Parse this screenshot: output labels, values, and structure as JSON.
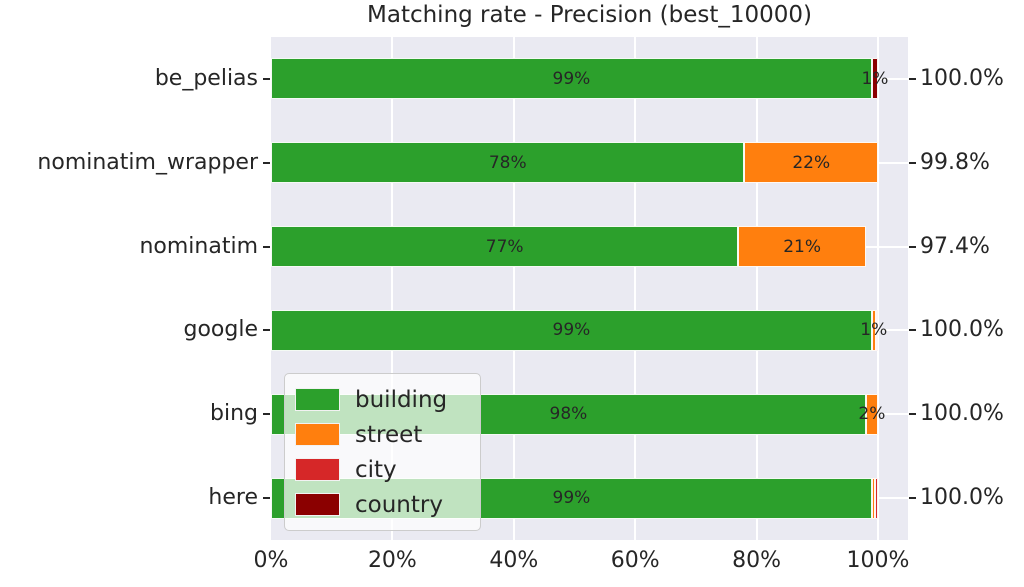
{
  "figure": {
    "background": "#ffffff",
    "plot_background": "#eaeaf2",
    "grid_color": "#ffffff",
    "text_color": "#262626"
  },
  "chart_data": {
    "type": "bar",
    "orientation": "horizontal",
    "stacked": true,
    "title": "Matching rate - Precision (best_10000)",
    "xlabel": "",
    "ylabel": "",
    "xlim": [
      0,
      105
    ],
    "grid": true,
    "x_ticks": [
      {
        "value": 0,
        "label": "0%"
      },
      {
        "value": 20,
        "label": "20%"
      },
      {
        "value": 40,
        "label": "40%"
      },
      {
        "value": 60,
        "label": "60%"
      },
      {
        "value": 80,
        "label": "80%"
      },
      {
        "value": 100,
        "label": "100%"
      }
    ],
    "legend": {
      "position": "lower left",
      "entries": [
        {
          "name": "building",
          "color": "#2ca02c"
        },
        {
          "name": "street",
          "color": "#ff7f0e"
        },
        {
          "name": "city",
          "color": "#d62728"
        },
        {
          "name": "country",
          "color": "#8b0000"
        }
      ]
    },
    "series_colors": {
      "building": "#2ca02c",
      "street": "#ff7f0e",
      "city": "#d62728",
      "country": "#8b0000"
    },
    "rows": [
      {
        "category": "be_pelias",
        "right_label": "100.0%",
        "segments": [
          {
            "series": "building",
            "value": 99,
            "label": "99%"
          },
          {
            "series": "country",
            "value": 1,
            "label": "1%"
          }
        ]
      },
      {
        "category": "nominatim_wrapper",
        "right_label": "99.8%",
        "segments": [
          {
            "series": "building",
            "value": 78,
            "label": "78%"
          },
          {
            "series": "street",
            "value": 22,
            "label": "22%"
          }
        ]
      },
      {
        "category": "nominatim",
        "right_label": "97.4%",
        "segments": [
          {
            "series": "building",
            "value": 77,
            "label": "77%"
          },
          {
            "series": "street",
            "value": 21,
            "label": "21%"
          }
        ]
      },
      {
        "category": "google",
        "right_label": "100.0%",
        "segments": [
          {
            "series": "building",
            "value": 99,
            "label": "99%"
          },
          {
            "series": "street",
            "value": 0.6,
            "label": "1%"
          },
          {
            "series": "city",
            "value": 0.4,
            "label": ""
          }
        ]
      },
      {
        "category": "bing",
        "right_label": "100.0%",
        "segments": [
          {
            "series": "building",
            "value": 98,
            "label": "98%"
          },
          {
            "series": "street",
            "value": 2,
            "label": "2%"
          }
        ]
      },
      {
        "category": "here",
        "right_label": "100.0%",
        "segments": [
          {
            "series": "building",
            "value": 99,
            "label": "99%"
          },
          {
            "series": "street",
            "value": 0.5,
            "label": ""
          },
          {
            "series": "city",
            "value": 0.5,
            "label": ""
          }
        ]
      }
    ]
  }
}
